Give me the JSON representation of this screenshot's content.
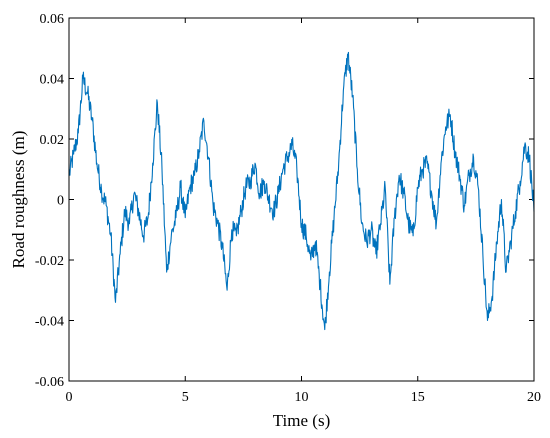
{
  "chart_data": {
    "type": "line",
    "title": "",
    "xlabel": "Time (s)",
    "ylabel": "Road roughness (m)",
    "xlim": [
      0,
      20
    ],
    "ylim": [
      -0.06,
      0.06
    ],
    "x_ticks": [
      0,
      5,
      10,
      15,
      20
    ],
    "x_tick_labels": [
      "0",
      "5",
      "10",
      "15",
      "20"
    ],
    "y_ticks": [
      -0.06,
      -0.04,
      -0.02,
      0,
      0.02,
      0.04,
      0.06
    ],
    "y_tick_labels": [
      "-0.06",
      "-0.04",
      "-0.02",
      "0",
      "0.02",
      "0.04",
      "0.06"
    ],
    "grid": false,
    "legend": "none",
    "line_color": "#0072BD",
    "series": [
      {
        "x": [
          0,
          0.2,
          0.4,
          0.6,
          0.8,
          1.0,
          1.2,
          1.4,
          1.6,
          1.8,
          2.0,
          2.2,
          2.4,
          2.6,
          2.8,
          3.0,
          3.2,
          3.4,
          3.6,
          3.8,
          4.0,
          4.2,
          4.4,
          4.6,
          4.8,
          5.0,
          5.2,
          5.4,
          5.6,
          5.8,
          6.0,
          6.2,
          6.4,
          6.6,
          6.8,
          7.0,
          7.2,
          7.4,
          7.6,
          7.8,
          8.0,
          8.2,
          8.4,
          8.6,
          8.8,
          9.0,
          9.2,
          9.4,
          9.6,
          9.8,
          10.0,
          10.2,
          10.4,
          10.6,
          10.8,
          11.0,
          11.2,
          11.4,
          11.6,
          11.8,
          12.0,
          12.2,
          12.4,
          12.6,
          12.8,
          13.0,
          13.2,
          13.4,
          13.6,
          13.8,
          14.0,
          14.2,
          14.4,
          14.6,
          14.8,
          15.0,
          15.2,
          15.4,
          15.6,
          15.8,
          16.0,
          16.2,
          16.4,
          16.6,
          16.8,
          17.0,
          17.2,
          17.4,
          17.6,
          17.8,
          18.0,
          18.2,
          18.4,
          18.6,
          18.8,
          19.0,
          19.2,
          19.4,
          19.6,
          19.8,
          20.0
        ],
        "values": [
          0.008,
          0.015,
          0.022,
          0.04,
          0.035,
          0.026,
          0.012,
          0.003,
          -0.002,
          -0.012,
          -0.034,
          -0.018,
          -0.004,
          -0.008,
          0.002,
          -0.004,
          -0.012,
          -0.006,
          0.012,
          0.032,
          0.01,
          -0.024,
          -0.012,
          -0.006,
          0.004,
          -0.006,
          0.004,
          0.008,
          0.016,
          0.026,
          0.014,
          -0.002,
          -0.008,
          -0.016,
          -0.03,
          -0.01,
          -0.012,
          -0.004,
          0.004,
          0.006,
          0.012,
          0.002,
          0.006,
          0.0,
          -0.004,
          0.002,
          0.01,
          0.014,
          0.018,
          0.01,
          -0.008,
          -0.012,
          -0.02,
          -0.014,
          -0.028,
          -0.043,
          -0.024,
          -0.006,
          0.012,
          0.036,
          0.048,
          0.034,
          0.01,
          -0.008,
          -0.014,
          -0.01,
          -0.018,
          -0.008,
          0.004,
          -0.028,
          -0.006,
          0.008,
          0.002,
          -0.008,
          -0.012,
          0.004,
          0.01,
          0.012,
          0.002,
          -0.008,
          0.012,
          0.024,
          0.028,
          0.016,
          0.008,
          -0.002,
          0.008,
          0.014,
          0.004,
          -0.018,
          -0.04,
          -0.032,
          -0.014,
          0.0,
          -0.024,
          -0.014,
          -0.004,
          0.006,
          0.018,
          0.014,
          -0.004
        ]
      }
    ]
  }
}
